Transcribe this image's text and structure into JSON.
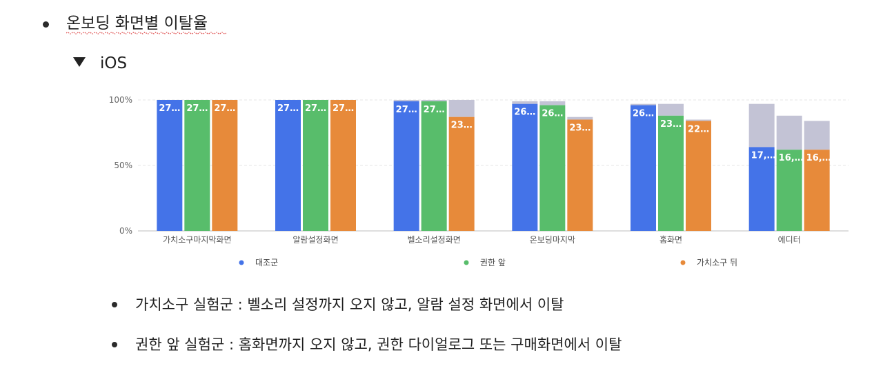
{
  "heading": "온보딩 화면별 이탈율",
  "section": {
    "label": "iOS"
  },
  "chart_data": {
    "type": "bar",
    "categories": [
      "가치소구마지막화면",
      "알람설정화면",
      "벨소리설정화면",
      "온보딩마지막",
      "홈화면",
      "에디터"
    ],
    "yticks": [
      "100%",
      "50%",
      "0%"
    ],
    "ylim": [
      0,
      100
    ],
    "legend": [
      "대조군",
      "권한 앞",
      "가치소구 뒤"
    ],
    "legend_position": "bottom",
    "colors": [
      "#4473e8",
      "#58bd6b",
      "#e78a3a"
    ],
    "overflow_color": "#c3c3d5",
    "series": [
      {
        "name": "대조군",
        "values": [
          100,
          100,
          99,
          97,
          96,
          64
        ],
        "totals": [
          100,
          100,
          100,
          99,
          97,
          97
        ],
        "labels": [
          "27…",
          "27…",
          "27…",
          "26…",
          "26…",
          "17,…"
        ]
      },
      {
        "name": "권한 앞",
        "values": [
          100,
          100,
          99,
          96,
          88,
          62
        ],
        "totals": [
          100,
          100,
          100,
          99,
          97,
          88
        ],
        "labels": [
          "27…",
          "27…",
          "27…",
          "26…",
          "23…",
          "16,…"
        ]
      },
      {
        "name": "가치소구 뒤",
        "values": [
          100,
          100,
          87,
          85,
          84,
          62
        ],
        "totals": [
          100,
          100,
          100,
          87,
          85,
          84
        ],
        "labels": [
          "27…",
          "27…",
          "23…",
          "23…",
          "22…",
          "16,…"
        ]
      }
    ]
  },
  "notes": [
    "가치소구 실험군 : 벨소리 설정까지 오지 않고, 알람 설정 화면에서 이탈",
    "권한 앞 실험군 : 홈화면까지 오지 않고, 권한 다이얼로그 또는 구매화면에서 이탈"
  ]
}
